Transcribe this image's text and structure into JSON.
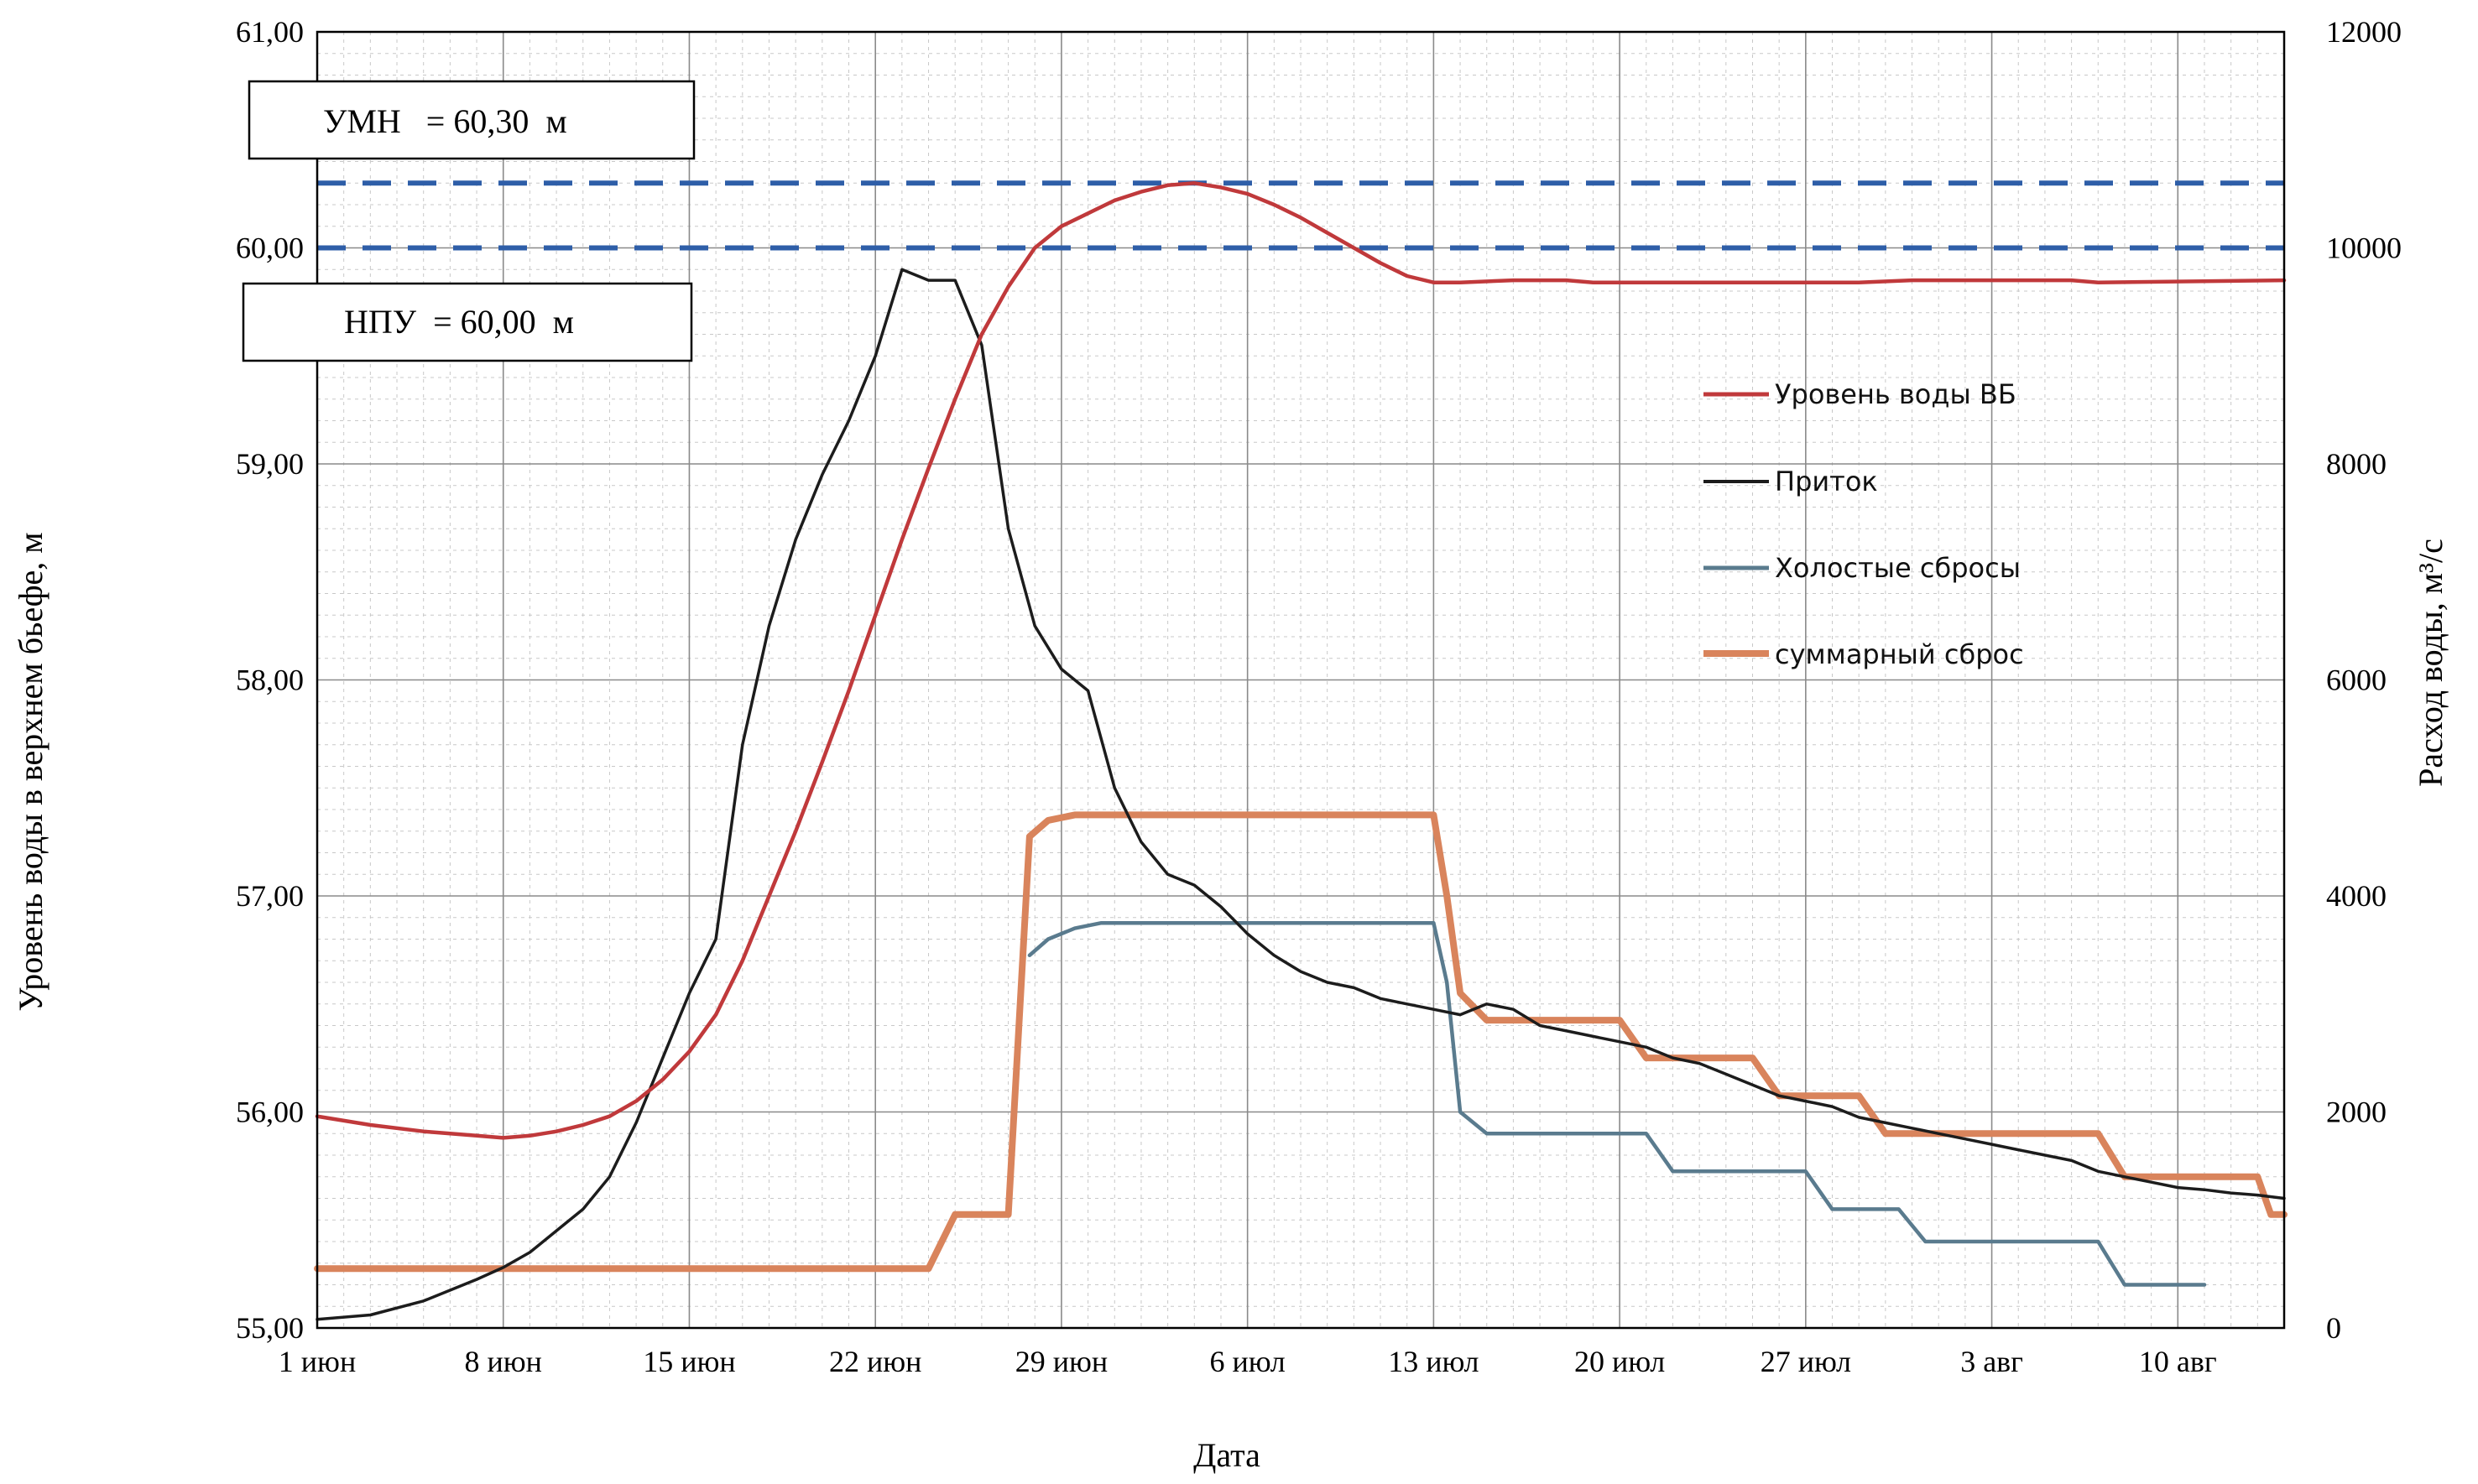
{
  "chart_data": {
    "type": "line",
    "x_label": "Дата",
    "y_left_label": "Уровень воды в верхнем бьефе, м",
    "y_right_label": "Расход воды, м³/с",
    "x_range_days": [
      0,
      74
    ],
    "x_ticks": [
      {
        "day": 0,
        "label": "1 июн"
      },
      {
        "day": 7,
        "label": "8 июн"
      },
      {
        "day": 14,
        "label": "15 июн"
      },
      {
        "day": 21,
        "label": "22 июн"
      },
      {
        "day": 28,
        "label": "29 июн"
      },
      {
        "day": 35,
        "label": "6 июл"
      },
      {
        "day": 42,
        "label": "13 июл"
      },
      {
        "day": 49,
        "label": "20 июл"
      },
      {
        "day": 56,
        "label": "27 июл"
      },
      {
        "day": 63,
        "label": "3 авг"
      },
      {
        "day": 70,
        "label": "10 авг"
      }
    ],
    "y_left": {
      "min": 55,
      "max": 61,
      "ticks": [
        "55,00",
        "56,00",
        "57,00",
        "58,00",
        "59,00",
        "60,00",
        "61,00"
      ]
    },
    "y_right": {
      "min": 0,
      "max": 12000,
      "ticks": [
        "0",
        "2000",
        "4000",
        "6000",
        "8000",
        "10000",
        "12000"
      ]
    },
    "reference_lines": [
      {
        "name": "УМН",
        "value": 60.3,
        "color": "#2e5ea8"
      },
      {
        "name": "НПУ",
        "value": 60.0,
        "color": "#2e5ea8"
      }
    ],
    "annotations": [
      {
        "text": "УМН   = 60,30  м"
      },
      {
        "text": "НПУ  = 60,00  м"
      }
    ],
    "legend": {
      "position": "center-right",
      "entries": [
        "Уровень воды ВБ",
        "Приток",
        "Холостые сбросы",
        "суммарный сброс"
      ]
    },
    "series": [
      {
        "name": "Уровень воды ВБ",
        "axis": "left",
        "color": "#c0393b",
        "points": [
          [
            0,
            55.98
          ],
          [
            2,
            55.94
          ],
          [
            4,
            55.91
          ],
          [
            6,
            55.89
          ],
          [
            7,
            55.88
          ],
          [
            8,
            55.89
          ],
          [
            9,
            55.91
          ],
          [
            10,
            55.94
          ],
          [
            11,
            55.98
          ],
          [
            12,
            56.05
          ],
          [
            13,
            56.15
          ],
          [
            14,
            56.28
          ],
          [
            15,
            56.45
          ],
          [
            16,
            56.7
          ],
          [
            17,
            57.0
          ],
          [
            18,
            57.3
          ],
          [
            19,
            57.62
          ],
          [
            20,
            57.95
          ],
          [
            21,
            58.3
          ],
          [
            22,
            58.65
          ],
          [
            23,
            58.98
          ],
          [
            24,
            59.3
          ],
          [
            25,
            59.6
          ],
          [
            26,
            59.82
          ],
          [
            27,
            60.0
          ],
          [
            28,
            60.1
          ],
          [
            29,
            60.16
          ],
          [
            30,
            60.22
          ],
          [
            31,
            60.26
          ],
          [
            32,
            60.29
          ],
          [
            33,
            60.3
          ],
          [
            34,
            60.28
          ],
          [
            35,
            60.25
          ],
          [
            36,
            60.2
          ],
          [
            37,
            60.14
          ],
          [
            38,
            60.07
          ],
          [
            39,
            60.0
          ],
          [
            40,
            59.93
          ],
          [
            41,
            59.87
          ],
          [
            42,
            59.84
          ],
          [
            43,
            59.84
          ],
          [
            45,
            59.85
          ],
          [
            47,
            59.85
          ],
          [
            48,
            59.84
          ],
          [
            55,
            59.84
          ],
          [
            58,
            59.84
          ],
          [
            60,
            59.85
          ],
          [
            66,
            59.85
          ],
          [
            67,
            59.84
          ],
          [
            74,
            59.85
          ]
        ]
      },
      {
        "name": "Приток",
        "axis": "right",
        "color": "#1c1c1c",
        "points": [
          [
            0,
            80
          ],
          [
            2,
            120
          ],
          [
            4,
            250
          ],
          [
            6,
            450
          ],
          [
            7,
            560
          ],
          [
            8,
            700
          ],
          [
            9,
            900
          ],
          [
            10,
            1100
          ],
          [
            11,
            1400
          ],
          [
            12,
            1900
          ],
          [
            13,
            2500
          ],
          [
            14,
            3100
          ],
          [
            15,
            3600
          ],
          [
            16,
            5400
          ],
          [
            17,
            6500
          ],
          [
            18,
            7300
          ],
          [
            19,
            7900
          ],
          [
            20,
            8400
          ],
          [
            21,
            9000
          ],
          [
            22,
            9800
          ],
          [
            23,
            9700
          ],
          [
            24,
            9700
          ],
          [
            25,
            9100
          ],
          [
            26,
            7400
          ],
          [
            27,
            6500
          ],
          [
            28,
            6100
          ],
          [
            29,
            5900
          ],
          [
            30,
            5000
          ],
          [
            31,
            4500
          ],
          [
            32,
            4200
          ],
          [
            33,
            4100
          ],
          [
            34,
            3900
          ],
          [
            35,
            3650
          ],
          [
            36,
            3450
          ],
          [
            37,
            3300
          ],
          [
            38,
            3200
          ],
          [
            39,
            3150
          ],
          [
            40,
            3050
          ],
          [
            41,
            3000
          ],
          [
            42,
            2950
          ],
          [
            43,
            2900
          ],
          [
            44,
            3000
          ],
          [
            45,
            2950
          ],
          [
            46,
            2800
          ],
          [
            47,
            2750
          ],
          [
            48,
            2700
          ],
          [
            49,
            2650
          ],
          [
            50,
            2600
          ],
          [
            51,
            2500
          ],
          [
            52,
            2450
          ],
          [
            53,
            2350
          ],
          [
            54,
            2250
          ],
          [
            55,
            2150
          ],
          [
            56,
            2100
          ],
          [
            57,
            2050
          ],
          [
            58,
            1950
          ],
          [
            59,
            1900
          ],
          [
            60,
            1850
          ],
          [
            61,
            1800
          ],
          [
            62,
            1750
          ],
          [
            63,
            1700
          ],
          [
            64,
            1650
          ],
          [
            65,
            1600
          ],
          [
            66,
            1550
          ],
          [
            67,
            1450
          ],
          [
            68,
            1400
          ],
          [
            69,
            1350
          ],
          [
            70,
            1300
          ],
          [
            71,
            1280
          ],
          [
            72,
            1250
          ],
          [
            73,
            1230
          ],
          [
            74,
            1200
          ]
        ]
      },
      {
        "name": "Холостые сбросы",
        "axis": "right",
        "color": "#5a7b8e",
        "points": [
          [
            26.8,
            3450
          ],
          [
            27.5,
            3600
          ],
          [
            28.5,
            3700
          ],
          [
            29.5,
            3750
          ],
          [
            42,
            3750
          ],
          [
            42.5,
            3200
          ],
          [
            43,
            2000
          ],
          [
            44,
            1800
          ],
          [
            50,
            1800
          ],
          [
            51,
            1450
          ],
          [
            56,
            1450
          ],
          [
            57,
            1100
          ],
          [
            59.5,
            1100
          ],
          [
            60.5,
            800
          ],
          [
            67,
            800
          ],
          [
            68,
            400
          ],
          [
            71,
            400
          ]
        ]
      },
      {
        "name": "суммарный сброс",
        "axis": "right",
        "color": "#d9845c",
        "points": [
          [
            0,
            550
          ],
          [
            23,
            550
          ],
          [
            24,
            1050
          ],
          [
            26,
            1050
          ],
          [
            26.8,
            4550
          ],
          [
            27.5,
            4700
          ],
          [
            28.5,
            4750
          ],
          [
            42,
            4750
          ],
          [
            42.5,
            4000
          ],
          [
            43,
            3100
          ],
          [
            44,
            2850
          ],
          [
            49,
            2850
          ],
          [
            50,
            2500
          ],
          [
            54,
            2500
          ],
          [
            55,
            2150
          ],
          [
            58,
            2150
          ],
          [
            59,
            1800
          ],
          [
            67,
            1800
          ],
          [
            68,
            1400
          ],
          [
            73,
            1400
          ],
          [
            73.5,
            1050
          ],
          [
            74,
            1050
          ]
        ]
      }
    ]
  }
}
